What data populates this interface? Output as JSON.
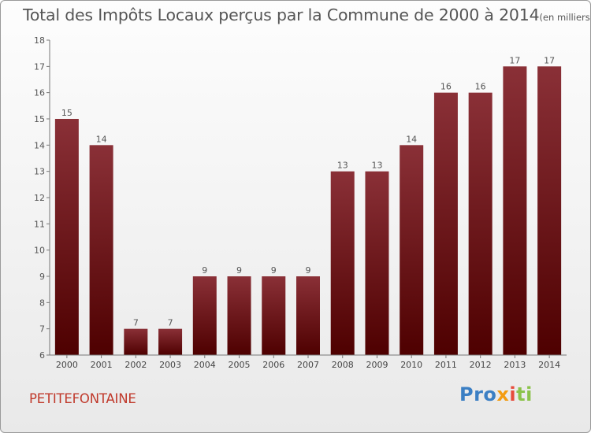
{
  "chart_data": {
    "type": "bar",
    "title": "Total des Impôts Locaux perçus par la Commune de 2000 à 2014",
    "unit": "(en milliers d'€)",
    "categories": [
      "2000",
      "2001",
      "2002",
      "2003",
      "2004",
      "2005",
      "2006",
      "2007",
      "2008",
      "2009",
      "2010",
      "2011",
      "2012",
      "2013",
      "2014"
    ],
    "values": [
      15,
      14,
      7,
      7,
      9,
      9,
      9,
      9,
      13,
      13,
      14,
      16,
      16,
      17,
      17
    ],
    "value_labels": [
      "15",
      "14",
      "7",
      "7",
      "9",
      "9",
      "9",
      "9",
      "13",
      "13",
      "14",
      "16",
      "16",
      "17",
      "17"
    ],
    "ylim": [
      6,
      18
    ],
    "yticks": [
      "6",
      "7",
      "8",
      "9",
      "10",
      "11",
      "12",
      "13",
      "14",
      "15",
      "16",
      "17",
      "18"
    ],
    "xlabel": "",
    "ylabel": "",
    "grid": false,
    "bar_color_top": "#8a3037",
    "bar_color_bottom": "#4e0000"
  },
  "commune": "PETITEFONTAINE",
  "logo": {
    "p1": "Pro",
    "p2": "x",
    "p3": "i",
    "p4": "ti"
  }
}
